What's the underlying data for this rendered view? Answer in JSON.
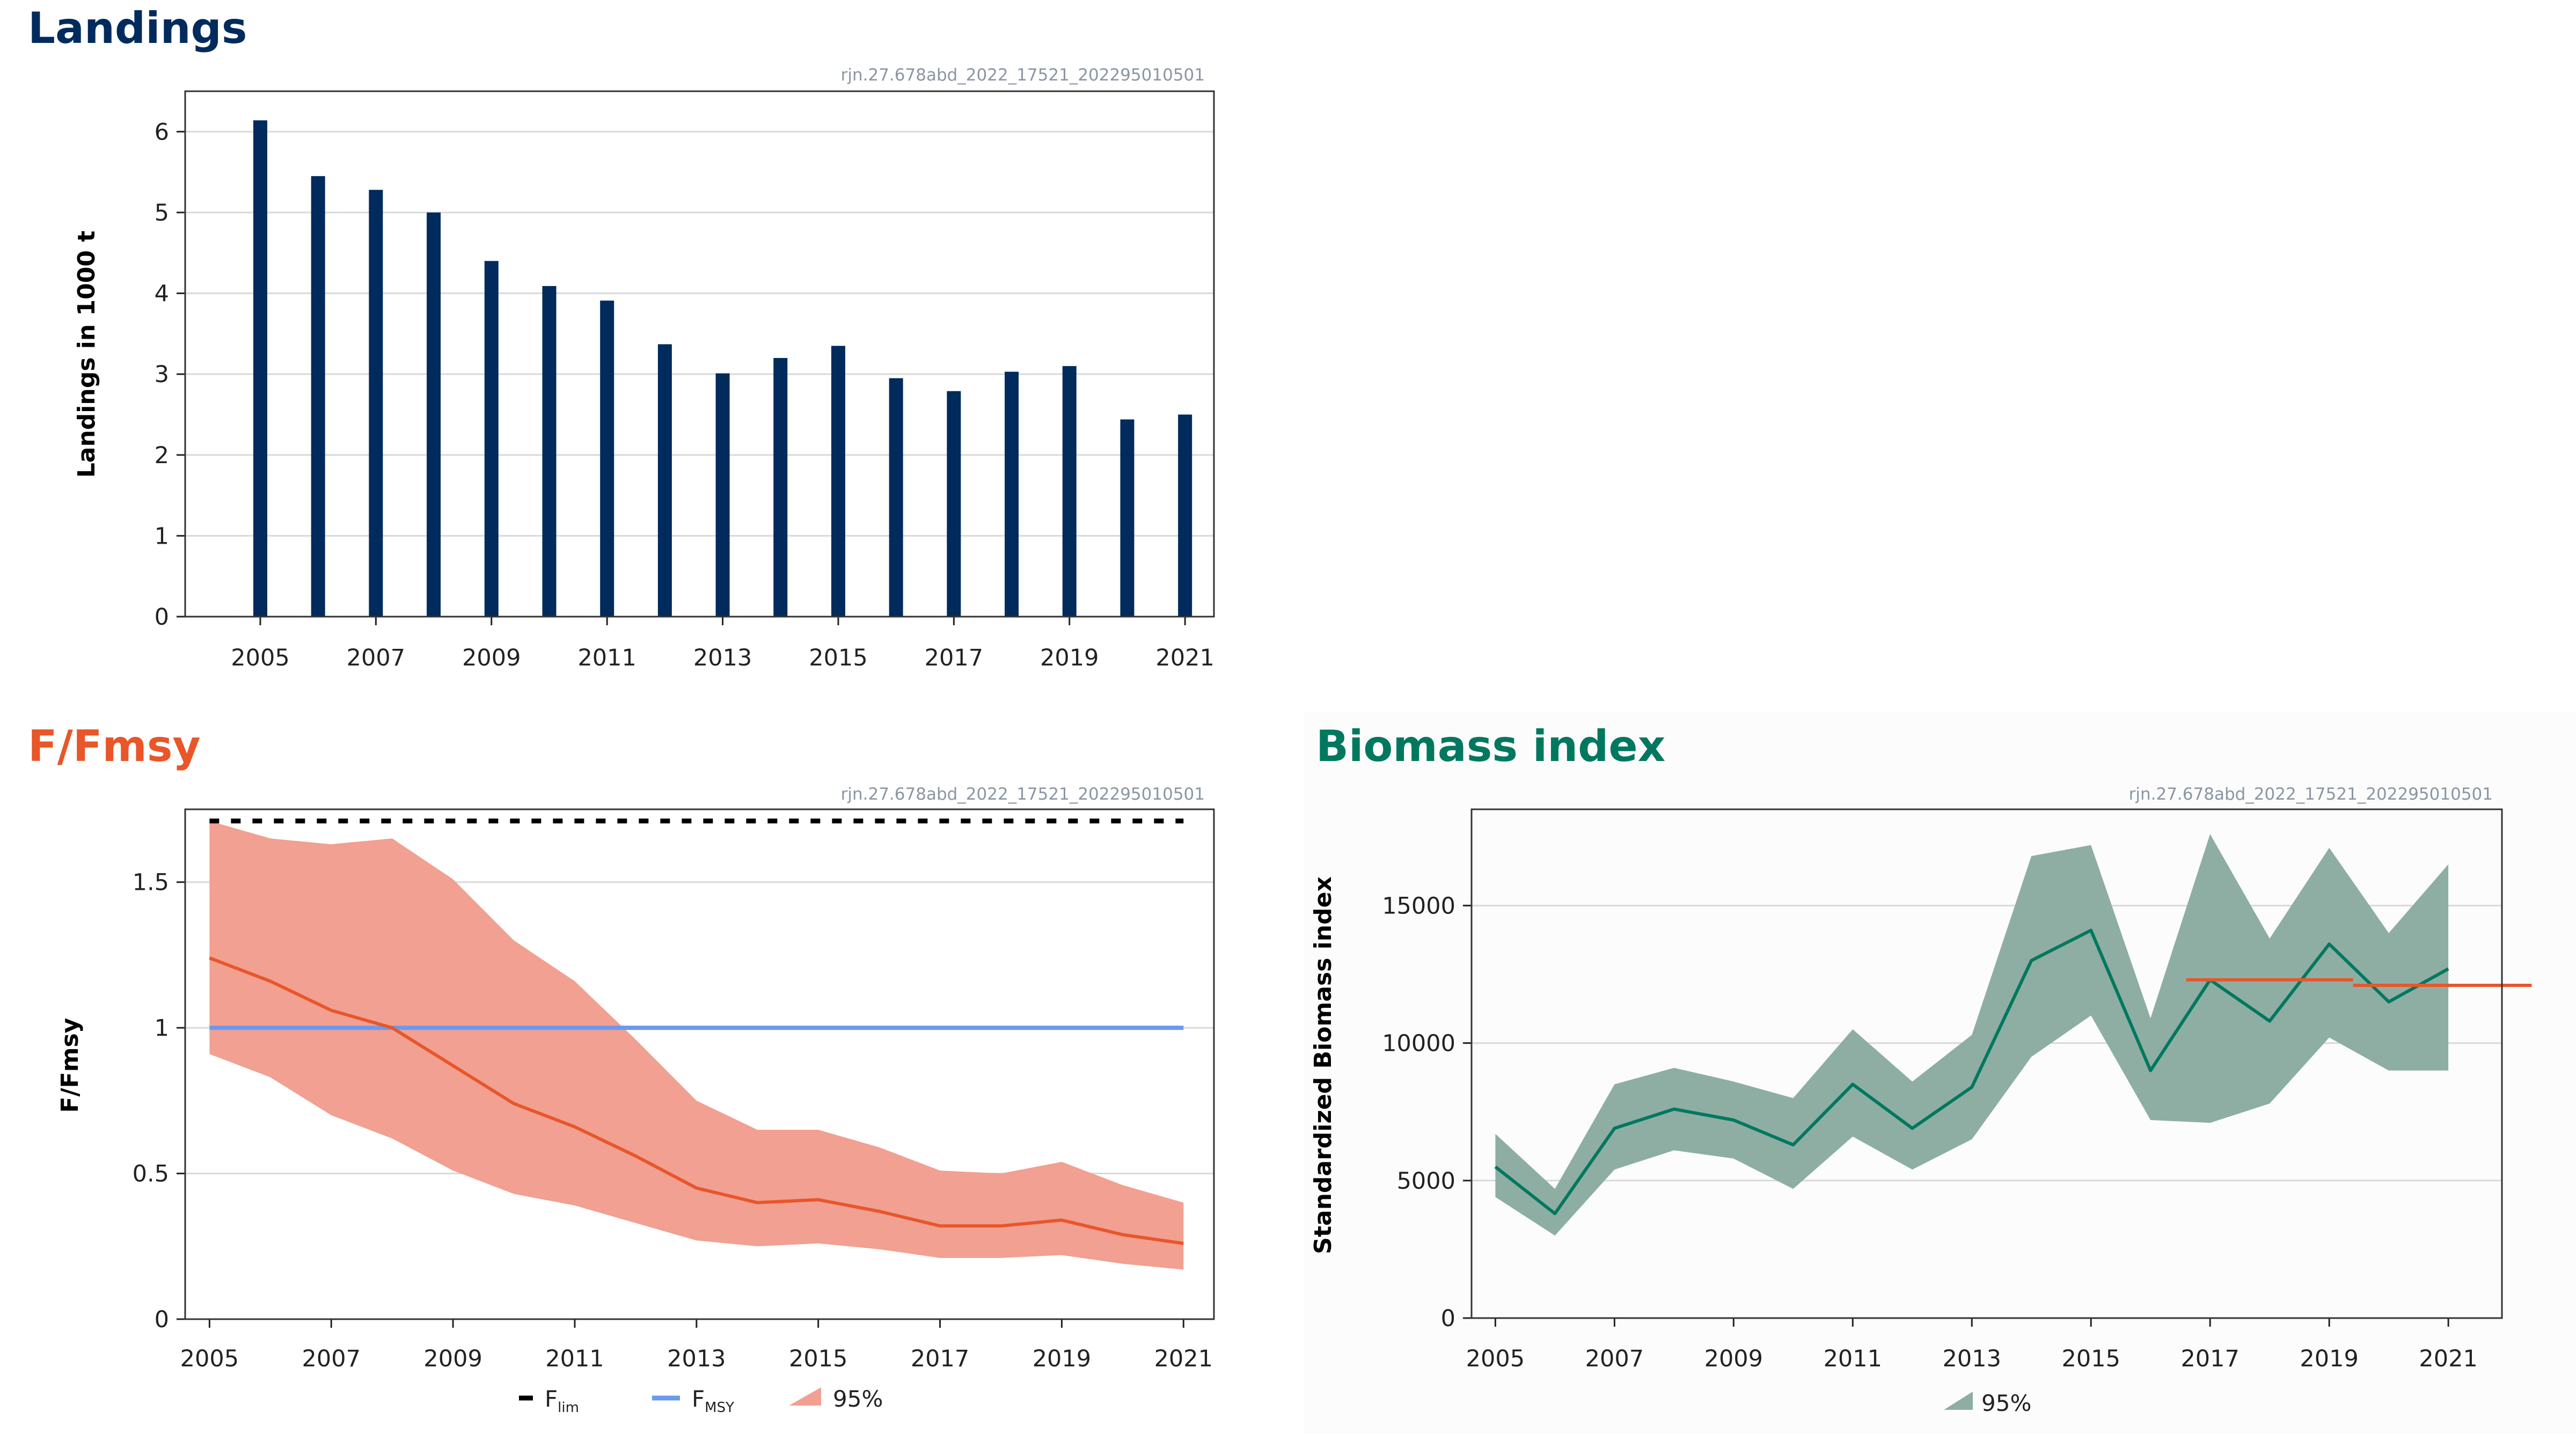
{
  "colors": {
    "navy": "#002b5c",
    "orange": "#e8562a",
    "orange_band": "#f1a091",
    "teal": "#00785f",
    "teal_band": "#8eaea3",
    "fmsy_blue": "#6b99f0",
    "grid": "#d9d9d9"
  },
  "chart_data": [
    {
      "id": "landings",
      "type": "bar",
      "title": "Landings",
      "ref": "rjn.27.678abd_2022_17521_202295010501",
      "ylabel": "Landings in 1000 t",
      "xlabel": "",
      "ylim": [
        0,
        6.5
      ],
      "yticks": [
        "0",
        "1",
        "2",
        "3",
        "4",
        "5",
        "6"
      ],
      "xticks": [
        "2005",
        "2007",
        "2009",
        "2011",
        "2013",
        "2015",
        "2017",
        "2019",
        "2021"
      ],
      "grid": true,
      "categories": [
        2005,
        2006,
        2007,
        2008,
        2009,
        2010,
        2011,
        2012,
        2013,
        2014,
        2015,
        2016,
        2017,
        2018,
        2019,
        2020,
        2021
      ],
      "values": [
        6.14,
        5.45,
        5.28,
        5.0,
        4.4,
        4.09,
        3.91,
        3.37,
        3.01,
        3.2,
        3.35,
        2.95,
        2.79,
        3.03,
        3.1,
        2.44,
        2.5
      ]
    },
    {
      "id": "ffmsy",
      "type": "line",
      "title": "F/Fmsy",
      "ref": "rjn.27.678abd_2022_17521_202295010501",
      "ylabel": "F/Fmsy",
      "ylim": [
        0,
        1.75
      ],
      "yticks": [
        "0",
        "0.5",
        "1",
        "1.5"
      ],
      "xticks": [
        "2005",
        "2007",
        "2009",
        "2011",
        "2013",
        "2015",
        "2017",
        "2019",
        "2021"
      ],
      "grid": true,
      "x": [
        2005,
        2006,
        2007,
        2008,
        2009,
        2010,
        2011,
        2012,
        2013,
        2014,
        2015,
        2016,
        2017,
        2018,
        2019,
        2020,
        2021
      ],
      "series": [
        {
          "kind": "line",
          "values": [
            1.24,
            1.16,
            1.06,
            1.0,
            0.87,
            0.74,
            0.66,
            0.56,
            0.45,
            0.4,
            0.41,
            0.37,
            0.32,
            0.32,
            0.34,
            0.29,
            0.26
          ]
        },
        {
          "kind": "band",
          "name": "95%",
          "lower": [
            0.91,
            0.83,
            0.7,
            0.62,
            0.51,
            0.43,
            0.39,
            0.33,
            0.27,
            0.25,
            0.26,
            0.24,
            0.21,
            0.21,
            0.22,
            0.19,
            0.17
          ],
          "upper": [
            1.71,
            1.65,
            1.63,
            1.65,
            1.51,
            1.3,
            1.16,
            0.96,
            0.75,
            0.65,
            0.65,
            0.59,
            0.51,
            0.5,
            0.54,
            0.46,
            0.4
          ]
        },
        {
          "kind": "hline",
          "name": "Flim",
          "value": 1.71
        },
        {
          "kind": "hline",
          "name": "FMSY",
          "value": 1.0
        }
      ],
      "legend": [
        {
          "main": "F",
          "sub": "lim",
          "kind": "dash"
        },
        {
          "main": "F",
          "sub": "MSY",
          "kind": "line"
        },
        {
          "main": "95%",
          "sub": "",
          "kind": "band"
        }
      ],
      "legend_position": "bottom"
    },
    {
      "id": "biomass",
      "type": "line",
      "title": "Biomass index",
      "ref": "rjn.27.678abd_2022_17521_202295010501",
      "ylabel": "Standardized Biomass index",
      "ylim": [
        0,
        18500
      ],
      "yticks": [
        "0",
        "5000",
        "10000",
        "15000"
      ],
      "xticks": [
        "2005",
        "2007",
        "2009",
        "2011",
        "2013",
        "2015",
        "2017",
        "2019",
        "2021"
      ],
      "grid": true,
      "x": [
        2005,
        2006,
        2007,
        2008,
        2009,
        2010,
        2011,
        2012,
        2013,
        2014,
        2015,
        2016,
        2017,
        2018,
        2019,
        2020,
        2021
      ],
      "series": [
        {
          "kind": "line",
          "values": [
            5500,
            3800,
            6900,
            7600,
            7200,
            6300,
            8500,
            6900,
            8400,
            13000,
            14100,
            9000,
            12300,
            10800,
            13600,
            11500,
            12700
          ]
        },
        {
          "kind": "band",
          "name": "95%",
          "lower": [
            4400,
            3000,
            5400,
            6100,
            5800,
            4700,
            6600,
            5400,
            6500,
            9500,
            11000,
            7200,
            7100,
            7800,
            10200,
            9000,
            9000
          ],
          "upper": [
            6700,
            4700,
            8500,
            9100,
            8600,
            8000,
            10500,
            8600,
            10300,
            16800,
            17200,
            10900,
            17600,
            13800,
            17100,
            14000,
            16500
          ]
        },
        {
          "kind": "segments",
          "segments": [
            {
              "x0": 2016.6,
              "x1": 2019.4,
              "value": 12300
            },
            {
              "x0": 2019.4,
              "x1": 2022.4,
              "value": 12100
            }
          ]
        }
      ],
      "legend": [
        {
          "main": "95%",
          "sub": "",
          "kind": "band"
        }
      ],
      "legend_position": "bottom"
    }
  ]
}
